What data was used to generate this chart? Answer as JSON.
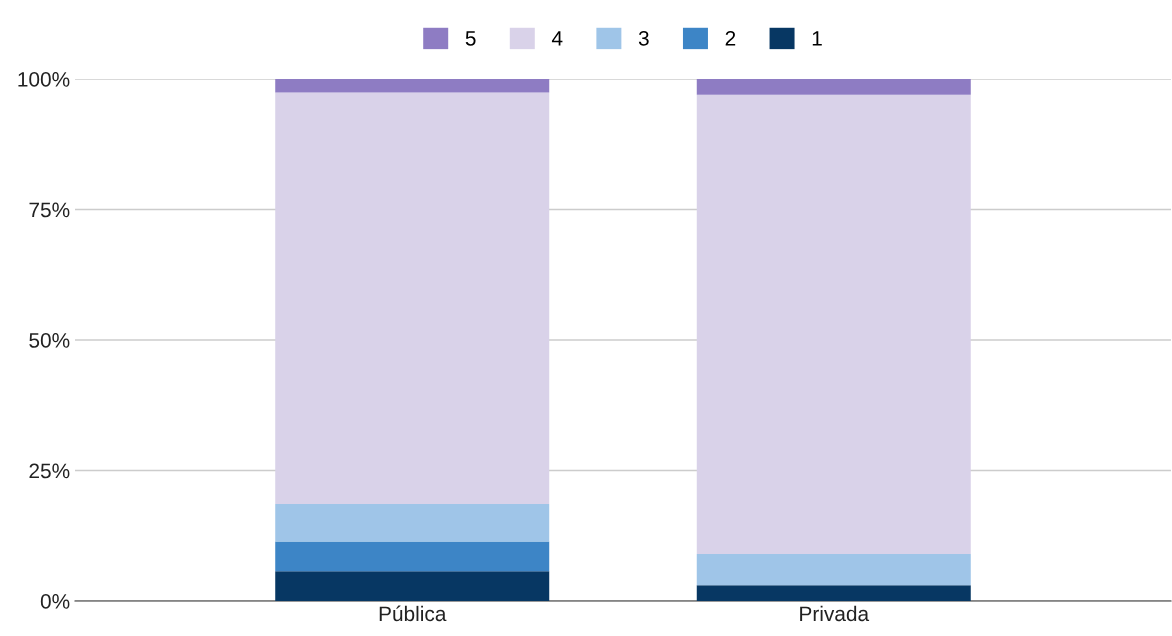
{
  "chart_data": {
    "type": "bar",
    "stacked": true,
    "categories": [
      "Pública",
      "Privada"
    ],
    "series": [
      {
        "name": "1",
        "color": "#073763",
        "values": [
          5.7,
          3.0
        ]
      },
      {
        "name": "2",
        "color": "#3d85c6",
        "values": [
          5.7,
          0
        ]
      },
      {
        "name": "3",
        "color": "#9fc5e8",
        "values": [
          7.2,
          6.0
        ]
      },
      {
        "name": "4",
        "color": "#d9d2e9",
        "values": [
          78.8,
          88.0
        ]
      },
      {
        "name": "5",
        "color": "#8e7cc3",
        "values": [
          2.6,
          3.0
        ]
      }
    ],
    "ylim": [
      0,
      100
    ],
    "yticks": [
      {
        "value": 0,
        "label": "0%"
      },
      {
        "value": 25,
        "label": "25%"
      },
      {
        "value": 50,
        "label": "50%"
      },
      {
        "value": 75,
        "label": "75%"
      },
      {
        "value": 100,
        "label": "100%"
      }
    ],
    "grid": "y",
    "legend": "top"
  }
}
